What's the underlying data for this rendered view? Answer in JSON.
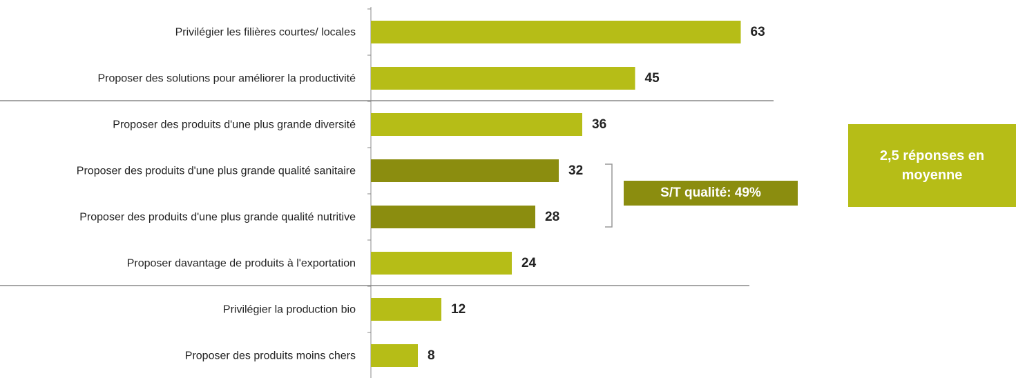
{
  "chart_data": {
    "type": "bar",
    "orientation": "horizontal",
    "categories": [
      "Privilégier les filières courtes/ locales",
      "Proposer des solutions pour améliorer la productivité",
      "Proposer des produits d'une plus grande diversité",
      "Proposer des produits d'une plus grande qualité sanitaire",
      "Proposer des produits d'une plus grande qualité nutritive",
      "Proposer davantage de produits à l'exportation",
      "Privilégier la production bio",
      "Proposer des produits moins chers"
    ],
    "values": [
      63,
      45,
      36,
      32,
      28,
      24,
      12,
      8
    ],
    "colors": [
      "#b6bd17",
      "#b6bd17",
      "#b6bd17",
      "#8b8d0f",
      "#8b8d0f",
      "#b6bd17",
      "#b6bd17",
      "#b6bd17"
    ],
    "annotations": [
      "S/T qualité: 49%",
      "2,5 réponses en moyenne"
    ]
  }
}
